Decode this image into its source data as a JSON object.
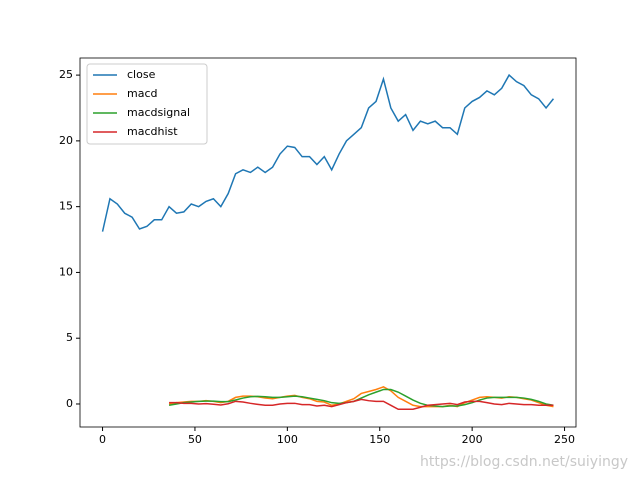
{
  "chart_data": {
    "type": "line",
    "x": [
      0,
      4,
      8,
      12,
      16,
      20,
      24,
      28,
      32,
      36,
      40,
      44,
      48,
      52,
      56,
      60,
      64,
      68,
      72,
      76,
      80,
      84,
      88,
      92,
      96,
      100,
      104,
      108,
      112,
      116,
      120,
      124,
      128,
      132,
      136,
      140,
      144,
      148,
      152,
      156,
      160,
      164,
      168,
      172,
      176,
      180,
      184,
      188,
      192,
      196,
      200,
      204,
      208,
      212,
      216,
      220,
      224,
      228,
      232,
      236,
      240,
      244
    ],
    "series": [
      {
        "name": "close",
        "color": "#1f77b4",
        "values": [
          13.1,
          15.6,
          15.2,
          14.5,
          14.2,
          13.3,
          13.5,
          14.0,
          14.0,
          15.0,
          14.5,
          14.6,
          15.2,
          15.0,
          15.4,
          15.6,
          15.0,
          16.0,
          17.5,
          17.8,
          17.6,
          18.0,
          17.6,
          18.0,
          19.0,
          19.6,
          19.5,
          18.8,
          18.8,
          18.2,
          18.8,
          17.8,
          19.0,
          20.0,
          20.5,
          21.0,
          22.5,
          23.0,
          24.7,
          22.5,
          21.5,
          22.0,
          20.8,
          21.5,
          21.3,
          21.5,
          21.0,
          21.0,
          20.5,
          22.5,
          23.0,
          23.3,
          23.8,
          23.5,
          24.0,
          25.0,
          24.5,
          24.2,
          23.5,
          23.2,
          22.5,
          23.2
        ]
      },
      {
        "name": "macd",
        "color": "#ff7f0e",
        "values": [
          null,
          null,
          null,
          null,
          null,
          null,
          null,
          null,
          null,
          0.0,
          0.1,
          0.15,
          0.2,
          0.2,
          0.25,
          0.2,
          0.1,
          0.2,
          0.5,
          0.6,
          0.6,
          0.55,
          0.45,
          0.4,
          0.5,
          0.6,
          0.65,
          0.5,
          0.4,
          0.2,
          0.15,
          -0.1,
          0.0,
          0.2,
          0.4,
          0.8,
          0.95,
          1.1,
          1.3,
          1.0,
          0.5,
          0.2,
          -0.1,
          -0.2,
          -0.2,
          -0.2,
          -0.2,
          -0.1,
          -0.2,
          0.1,
          0.3,
          0.5,
          0.55,
          0.5,
          0.45,
          0.55,
          0.5,
          0.4,
          0.3,
          0.1,
          -0.1,
          -0.2
        ]
      },
      {
        "name": "macdsignal",
        "color": "#2ca02c",
        "values": [
          null,
          null,
          null,
          null,
          null,
          null,
          null,
          null,
          null,
          -0.1,
          0.0,
          0.1,
          0.15,
          0.2,
          0.22,
          0.22,
          0.18,
          0.18,
          0.3,
          0.45,
          0.55,
          0.58,
          0.55,
          0.5,
          0.5,
          0.55,
          0.6,
          0.55,
          0.45,
          0.35,
          0.25,
          0.1,
          0.05,
          0.1,
          0.2,
          0.45,
          0.7,
          0.9,
          1.1,
          1.1,
          0.9,
          0.6,
          0.3,
          0.05,
          -0.1,
          -0.15,
          -0.2,
          -0.15,
          -0.15,
          -0.05,
          0.1,
          0.3,
          0.45,
          0.5,
          0.5,
          0.5,
          0.5,
          0.45,
          0.35,
          0.2,
          0.0,
          -0.1
        ]
      },
      {
        "name": "macdhist",
        "color": "#d62728",
        "values": [
          null,
          null,
          null,
          null,
          null,
          null,
          null,
          null,
          null,
          0.1,
          0.1,
          0.05,
          0.05,
          0,
          0.03,
          -0.02,
          -0.08,
          0.02,
          0.2,
          0.15,
          0.05,
          -0.03,
          -0.1,
          -0.1,
          0,
          0.05,
          0.05,
          -0.05,
          -0.05,
          -0.15,
          -0.1,
          -0.2,
          -0.05,
          0.1,
          0.2,
          0.35,
          0.25,
          0.2,
          0.2,
          -0.1,
          -0.4,
          -0.4,
          -0.4,
          -0.25,
          -0.1,
          -0.05,
          0,
          0.05,
          -0.05,
          0.15,
          0.2,
          0.2,
          0.1,
          0,
          -0.05,
          0.05,
          0,
          -0.05,
          -0.05,
          -0.1,
          -0.1,
          -0.1
        ]
      }
    ],
    "xlim": [
      -12.2,
      256.2
    ],
    "ylim": [
      -1.75,
      26.3
    ],
    "xticks": [
      0,
      50,
      100,
      150,
      200,
      250
    ],
    "yticks": [
      0,
      5,
      10,
      15,
      20,
      25
    ],
    "legend": "upper left",
    "watermark": "https://blog.csdn.net/suiyingy"
  }
}
